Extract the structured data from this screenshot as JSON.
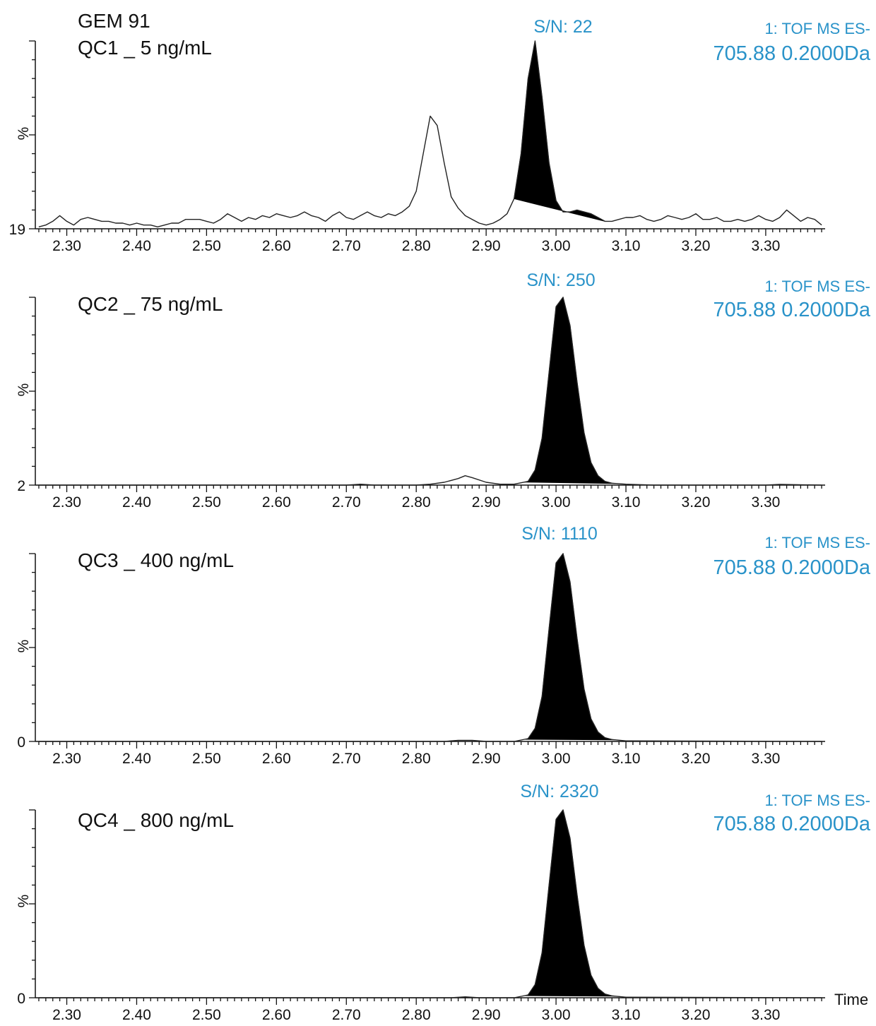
{
  "chart_data": [
    {
      "type": "line",
      "title": "GEM 91",
      "subtitle": "QC1 _ 5 ng/mL",
      "sn_label": "S/N: 22",
      "function_label": "1: TOF MS ES-",
      "mass_label": "705.88 0.2000Da",
      "ylabel": "%",
      "ymin_label": "19",
      "xlabel": "",
      "xlim": [
        2.255,
        3.385
      ],
      "ylim": [
        0,
        100
      ],
      "xticks": [
        "2.30",
        "2.40",
        "2.50",
        "2.60",
        "2.70",
        "2.80",
        "2.90",
        "3.00",
        "3.10",
        "3.20",
        "3.30"
      ],
      "series": [
        {
          "x": [
            2.26,
            2.27,
            2.28,
            2.29,
            2.3,
            2.31,
            2.32,
            2.33,
            2.34,
            2.35,
            2.36,
            2.37,
            2.38,
            2.39,
            2.4,
            2.41,
            2.42,
            2.43,
            2.44,
            2.45,
            2.46,
            2.47,
            2.48,
            2.49,
            2.5,
            2.51,
            2.52,
            2.53,
            2.54,
            2.55,
            2.56,
            2.57,
            2.58,
            2.59,
            2.6,
            2.61,
            2.62,
            2.63,
            2.64,
            2.65,
            2.66,
            2.67,
            2.68,
            2.69,
            2.7,
            2.71,
            2.72,
            2.73,
            2.74,
            2.75,
            2.76,
            2.77,
            2.78,
            2.79,
            2.8,
            2.81,
            2.82,
            2.83,
            2.84,
            2.85,
            2.86,
            2.87,
            2.88,
            2.89,
            2.9,
            2.91,
            2.92,
            2.93,
            2.94,
            2.95,
            2.96,
            2.97,
            2.98,
            2.99,
            3.0,
            3.01,
            3.02,
            3.03,
            3.04,
            3.05,
            3.06,
            3.07,
            3.08,
            3.09,
            3.1,
            3.11,
            3.12,
            3.13,
            3.14,
            3.15,
            3.16,
            3.17,
            3.18,
            3.19,
            3.2,
            3.21,
            3.22,
            3.23,
            3.24,
            3.25,
            3.26,
            3.27,
            3.28,
            3.29,
            3.3,
            3.31,
            3.32,
            3.33,
            3.34,
            3.35,
            3.36,
            3.37,
            3.38
          ],
          "y": [
            1,
            2,
            4,
            7,
            4,
            2,
            5,
            6,
            5,
            4,
            4,
            3,
            3,
            2,
            3,
            2,
            2,
            1,
            2,
            3,
            3,
            5,
            5,
            5,
            4,
            3,
            5,
            8,
            6,
            4,
            6,
            5,
            7,
            6,
            8,
            7,
            6,
            7,
            9,
            7,
            6,
            4,
            7,
            9,
            6,
            5,
            7,
            9,
            7,
            6,
            8,
            7,
            9,
            12,
            20,
            40,
            60,
            55,
            35,
            17,
            11,
            7,
            5,
            3,
            2,
            3,
            5,
            8,
            16,
            40,
            80,
            100,
            70,
            35,
            15,
            9,
            9,
            10,
            9,
            8,
            6,
            4,
            4,
            5,
            6,
            6,
            7,
            5,
            4,
            5,
            7,
            6,
            5,
            6,
            8,
            5,
            5,
            6,
            4,
            4,
            5,
            4,
            5,
            7,
            5,
            4,
            6,
            10,
            7,
            4,
            6,
            5,
            2
          ]
        }
      ],
      "integrated_peak": {
        "start_x": 2.94,
        "end_x": 3.07,
        "apex_x": 3.01
      }
    },
    {
      "type": "line",
      "title": "QC2 _ 75 ng/mL",
      "sn_label": "S/N: 250",
      "function_label": "1: TOF MS ES-",
      "mass_label": "705.88 0.2000Da",
      "ylabel": "%",
      "ymin_label": "2",
      "xlabel": "",
      "xlim": [
        2.255,
        3.385
      ],
      "ylim": [
        0,
        100
      ],
      "xticks": [
        "2.30",
        "2.40",
        "2.50",
        "2.60",
        "2.70",
        "2.80",
        "2.90",
        "3.00",
        "3.10",
        "3.20",
        "3.30"
      ],
      "series": [
        {
          "x": [
            2.26,
            2.7,
            2.72,
            2.74,
            2.8,
            2.82,
            2.84,
            2.86,
            2.87,
            2.88,
            2.9,
            2.92,
            2.94,
            2.96,
            2.97,
            2.98,
            2.99,
            3.0,
            3.01,
            3.02,
            3.03,
            3.04,
            3.05,
            3.06,
            3.07,
            3.08,
            3.1,
            3.14,
            3.3,
            3.32,
            3.38
          ],
          "y": [
            0,
            0,
            0.5,
            0,
            0,
            0.5,
            1.5,
            3.5,
            5,
            4,
            1.5,
            0.5,
            0.5,
            2,
            8,
            25,
            60,
            95,
            100,
            85,
            55,
            28,
            12,
            5,
            2,
            1,
            0.5,
            0,
            0,
            0.4,
            0
          ]
        }
      ],
      "integrated_peak": {
        "start_x": 2.955,
        "end_x": 3.085,
        "apex_x": 3.005
      }
    },
    {
      "type": "line",
      "title": "QC3 _ 400 ng/mL",
      "sn_label": "S/N: 1110",
      "function_label": "1: TOF MS ES-",
      "mass_label": "705.88 0.2000Da",
      "ylabel": "%",
      "ymin_label": "0",
      "xlabel": "",
      "xlim": [
        2.255,
        3.385
      ],
      "ylim": [
        0,
        100
      ],
      "xticks": [
        "2.30",
        "2.40",
        "2.50",
        "2.60",
        "2.70",
        "2.80",
        "2.90",
        "3.00",
        "3.10",
        "3.20",
        "3.30"
      ],
      "series": [
        {
          "x": [
            2.26,
            2.84,
            2.86,
            2.88,
            2.9,
            2.94,
            2.96,
            2.97,
            2.98,
            2.99,
            3.0,
            3.01,
            3.02,
            3.03,
            3.04,
            3.05,
            3.06,
            3.07,
            3.08,
            3.1,
            3.38
          ],
          "y": [
            0,
            0,
            0.6,
            0.6,
            0,
            0,
            1.5,
            7,
            24,
            60,
            95,
            100,
            85,
            55,
            28,
            12,
            5,
            2,
            1,
            0.3,
            0
          ]
        }
      ],
      "integrated_peak": {
        "start_x": 2.955,
        "end_x": 3.085,
        "apex_x": 3.005
      }
    },
    {
      "type": "line",
      "title": "QC4 _ 800 ng/mL",
      "sn_label": "S/N: 2320",
      "function_label": "1: TOF MS ES-",
      "mass_label": "705.88 0.2000Da",
      "ylabel": "%",
      "ymin_label": "0",
      "xlabel": "Time",
      "xlim": [
        2.255,
        3.385
      ],
      "ylim": [
        0,
        100
      ],
      "xticks": [
        "2.30",
        "2.40",
        "2.50",
        "2.60",
        "2.70",
        "2.80",
        "2.90",
        "3.00",
        "3.10",
        "3.20",
        "3.30"
      ],
      "series": [
        {
          "x": [
            2.26,
            2.85,
            2.87,
            2.89,
            2.94,
            2.96,
            2.97,
            2.98,
            2.99,
            3.0,
            3.01,
            3.02,
            3.03,
            3.04,
            3.05,
            3.06,
            3.07,
            3.08,
            3.1,
            3.38
          ],
          "y": [
            0,
            0,
            0.5,
            0,
            0,
            1.5,
            7,
            24,
            60,
            95,
            100,
            85,
            55,
            28,
            12,
            5,
            2,
            1,
            0.3,
            0
          ]
        }
      ],
      "integrated_peak": {
        "start_x": 2.955,
        "end_x": 3.085,
        "apex_x": 3.005
      }
    }
  ]
}
